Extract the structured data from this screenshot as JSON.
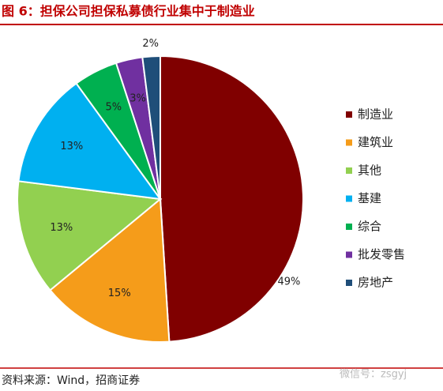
{
  "chart_data": {
    "type": "pie",
    "title": "图 6：担保公司担保私募债行业集中于制造业",
    "categories": [
      "制造业",
      "建筑业",
      "其他",
      "基建",
      "综合",
      "批发零售",
      "房地产"
    ],
    "values": [
      49,
      15,
      13,
      13,
      5,
      3,
      2
    ],
    "value_labels": [
      "49%",
      "15%",
      "13%",
      "13%",
      "5%",
      "3%",
      "2%"
    ],
    "colors": [
      "#800000",
      "#f59c1a",
      "#92d050",
      "#00b0f0",
      "#00b050",
      "#7030a0",
      "#1f4e79"
    ],
    "legend": "right",
    "source": "资料来源：Wind，招商证券",
    "watermark": "微信号：zsgyj"
  }
}
